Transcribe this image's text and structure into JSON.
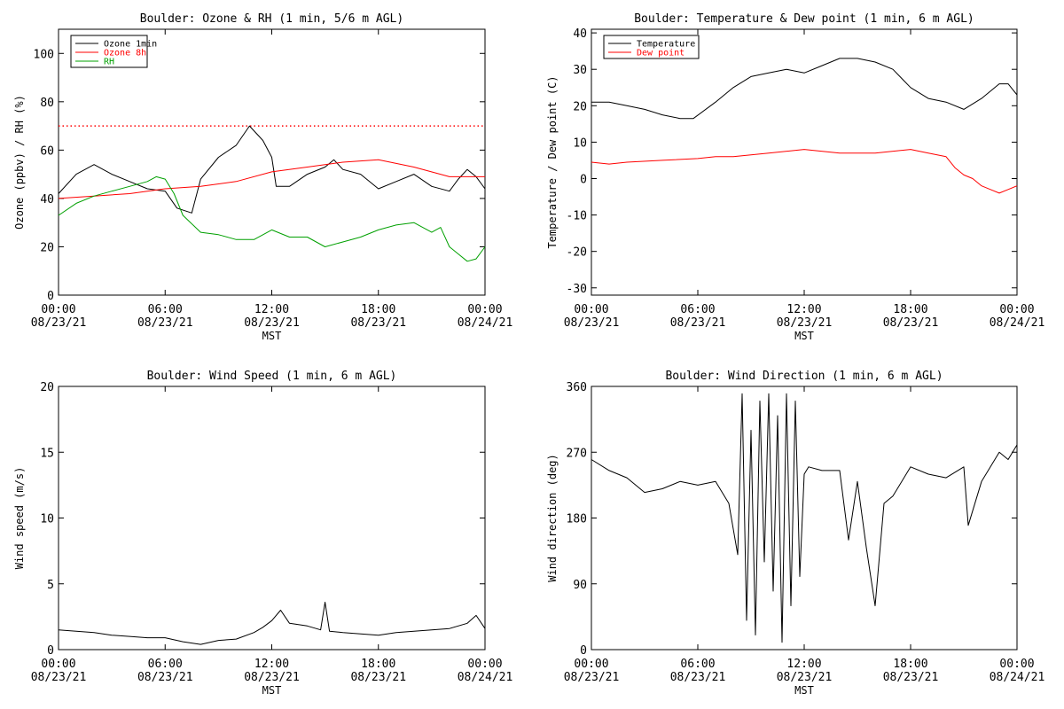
{
  "figure": {
    "background": "#ffffff"
  },
  "chart_data": [
    {
      "type": "line",
      "title": "Boulder: Ozone & RH (1 min, 5/6 m AGL)",
      "xlabel": "MST",
      "ylabel": "Ozone (ppbv) / RH (%)",
      "xlim": [
        "08/23/21 00:00",
        "08/24/21 00:00"
      ],
      "xticks": [
        {
          "time": "00:00",
          "date": "08/23/21"
        },
        {
          "time": "06:00",
          "date": "08/23/21"
        },
        {
          "time": "12:00",
          "date": "08/23/21"
        },
        {
          "time": "18:00",
          "date": "08/23/21"
        },
        {
          "time": "00:00",
          "date": "08/24/21"
        }
      ],
      "ylim": [
        0,
        110
      ],
      "yticks": [
        "0",
        "20",
        "40",
        "60",
        "80",
        "100"
      ],
      "ytick_values": [
        0,
        20,
        40,
        60,
        80,
        100
      ],
      "legend_position": "top-left",
      "reference_line": {
        "y": 70,
        "color": "#ff0000",
        "style": "dotted"
      },
      "series": [
        {
          "name": "Ozone 1min",
          "color": "#000000",
          "x": [
            "00:00",
            "01:00",
            "02:00",
            "03:00",
            "04:00",
            "05:00",
            "06:00",
            "06:40",
            "07:30",
            "08:00",
            "09:00",
            "10:00",
            "10:45",
            "11:30",
            "12:00",
            "12:15",
            "13:00",
            "14:00",
            "15:00",
            "15:30",
            "16:00",
            "17:00",
            "18:00",
            "19:00",
            "20:00",
            "21:00",
            "22:00",
            "22:30",
            "23:00",
            "23:30",
            "24:00"
          ],
          "y": [
            42,
            50,
            54,
            50,
            47,
            44,
            43,
            36,
            34,
            48,
            57,
            62,
            70,
            64,
            57,
            45,
            45,
            50,
            53,
            56,
            52,
            50,
            44,
            47,
            50,
            45,
            43,
            48,
            52,
            49,
            44
          ]
        },
        {
          "name": "Ozone 8h",
          "color": "#ff0000",
          "x": [
            "00:00",
            "02:00",
            "04:00",
            "06:00",
            "08:00",
            "10:00",
            "12:00",
            "14:00",
            "16:00",
            "18:00",
            "20:00",
            "22:00",
            "24:00"
          ],
          "y": [
            40,
            41,
            42,
            44,
            45,
            47,
            51,
            53,
            55,
            56,
            53,
            49,
            49
          ]
        },
        {
          "name": "RH",
          "color": "#00a000",
          "x": [
            "00:00",
            "01:00",
            "02:00",
            "03:00",
            "04:00",
            "05:00",
            "05:30",
            "06:00",
            "06:30",
            "07:00",
            "08:00",
            "09:00",
            "10:00",
            "11:00",
            "12:00",
            "13:00",
            "14:00",
            "15:00",
            "16:00",
            "17:00",
            "18:00",
            "19:00",
            "20:00",
            "21:00",
            "21:30",
            "22:00",
            "22:30",
            "23:00",
            "23:30",
            "24:00"
          ],
          "y": [
            33,
            38,
            41,
            43,
            45,
            47,
            49,
            48,
            42,
            33,
            26,
            25,
            23,
            23,
            27,
            24,
            24,
            20,
            22,
            24,
            27,
            29,
            30,
            26,
            28,
            20,
            17,
            14,
            15,
            20
          ]
        }
      ]
    },
    {
      "type": "line",
      "title": "Boulder: Temperature & Dew point (1 min, 6 m AGL)",
      "xlabel": "MST",
      "ylabel": "Temperature / Dew point (C)",
      "xlim": [
        "08/23/21 00:00",
        "08/24/21 00:00"
      ],
      "xticks": [
        {
          "time": "00:00",
          "date": "08/23/21"
        },
        {
          "time": "06:00",
          "date": "08/23/21"
        },
        {
          "time": "12:00",
          "date": "08/23/21"
        },
        {
          "time": "18:00",
          "date": "08/23/21"
        },
        {
          "time": "00:00",
          "date": "08/24/21"
        }
      ],
      "ylim": [
        -32,
        41
      ],
      "yticks": [
        "-30",
        "-20",
        "-10",
        "0",
        "10",
        "20",
        "30",
        "40"
      ],
      "ytick_values": [
        -30,
        -20,
        -10,
        0,
        10,
        20,
        30,
        40
      ],
      "legend_position": "top-left",
      "series": [
        {
          "name": "Temperature",
          "color": "#000000",
          "x": [
            "00:00",
            "01:00",
            "02:00",
            "03:00",
            "04:00",
            "05:00",
            "05:45",
            "07:00",
            "08:00",
            "09:00",
            "10:00",
            "11:00",
            "12:00",
            "13:00",
            "14:00",
            "15:00",
            "16:00",
            "17:00",
            "18:00",
            "19:00",
            "20:00",
            "21:00",
            "22:00",
            "22:30",
            "23:00",
            "23:30",
            "24:00"
          ],
          "y": [
            21,
            21,
            20,
            19,
            17.5,
            16.5,
            16.5,
            21,
            25,
            28,
            29,
            30,
            29,
            31,
            33,
            33,
            32,
            30,
            25,
            22,
            21,
            19,
            22,
            24,
            26,
            26,
            23
          ]
        },
        {
          "name": "Dew point",
          "color": "#ff0000",
          "x": [
            "00:00",
            "01:00",
            "02:00",
            "04:00",
            "06:00",
            "07:00",
            "08:00",
            "10:00",
            "12:00",
            "14:00",
            "16:00",
            "18:00",
            "19:00",
            "20:00",
            "20:30",
            "21:00",
            "21:30",
            "22:00",
            "22:30",
            "23:00",
            "23:30",
            "24:00"
          ],
          "y": [
            4.5,
            4,
            4.5,
            5,
            5.5,
            6,
            6,
            7,
            8,
            7,
            7,
            8,
            7,
            6,
            3,
            1,
            0,
            -2,
            -3,
            -4,
            -3,
            -2
          ]
        }
      ]
    },
    {
      "type": "line",
      "title": "Boulder: Wind Speed (1 min, 6 m AGL)",
      "xlabel": "MST",
      "ylabel": "Wind speed (m/s)",
      "xlim": [
        "08/23/21 00:00",
        "08/24/21 00:00"
      ],
      "xticks": [
        {
          "time": "00:00",
          "date": "08/23/21"
        },
        {
          "time": "06:00",
          "date": "08/23/21"
        },
        {
          "time": "12:00",
          "date": "08/23/21"
        },
        {
          "time": "18:00",
          "date": "08/23/21"
        },
        {
          "time": "00:00",
          "date": "08/24/21"
        }
      ],
      "ylim": [
        0,
        20
      ],
      "yticks": [
        "0",
        "5",
        "10",
        "15",
        "20"
      ],
      "ytick_values": [
        0,
        5,
        10,
        15,
        20
      ],
      "series": [
        {
          "color": "#000000",
          "x": [
            "00:00",
            "01:00",
            "02:00",
            "03:00",
            "04:00",
            "05:00",
            "06:00",
            "07:00",
            "08:00",
            "09:00",
            "10:00",
            "11:00",
            "11:30",
            "12:00",
            "12:30",
            "13:00",
            "14:00",
            "14:45",
            "15:00",
            "15:15",
            "16:00",
            "17:00",
            "18:00",
            "19:00",
            "20:00",
            "21:00",
            "22:00",
            "23:00",
            "23:30",
            "24:00"
          ],
          "y": [
            1.5,
            1.4,
            1.3,
            1.1,
            1.0,
            0.9,
            0.9,
            0.6,
            0.4,
            0.7,
            0.8,
            1.3,
            1.7,
            2.2,
            3.0,
            2.0,
            1.8,
            1.5,
            3.6,
            1.4,
            1.3,
            1.2,
            1.1,
            1.3,
            1.4,
            1.5,
            1.6,
            2.0,
            2.6,
            1.6
          ]
        }
      ]
    },
    {
      "type": "line",
      "title": "Boulder: Wind Direction (1 min, 6 m AGL)",
      "xlabel": "MST",
      "ylabel": "Wind direction (deg)",
      "xlim": [
        "08/23/21 00:00",
        "08/24/21 00:00"
      ],
      "xticks": [
        {
          "time": "00:00",
          "date": "08/23/21"
        },
        {
          "time": "06:00",
          "date": "08/23/21"
        },
        {
          "time": "12:00",
          "date": "08/23/21"
        },
        {
          "time": "18:00",
          "date": "08/23/21"
        },
        {
          "time": "00:00",
          "date": "08/24/21"
        }
      ],
      "ylim": [
        0,
        360
      ],
      "yticks": [
        "0",
        "90",
        "180",
        "270",
        "360"
      ],
      "ytick_values": [
        0,
        90,
        180,
        270,
        360
      ],
      "series": [
        {
          "color": "#000000",
          "x": [
            "00:00",
            "01:00",
            "02:00",
            "03:00",
            "04:00",
            "05:00",
            "06:00",
            "07:00",
            "07:45",
            "08:15",
            "08:30",
            "08:45",
            "09:00",
            "09:15",
            "09:30",
            "09:45",
            "10:00",
            "10:15",
            "10:30",
            "10:45",
            "11:00",
            "11:15",
            "11:30",
            "11:45",
            "12:00",
            "12:15",
            "13:00",
            "14:00",
            "14:30",
            "15:00",
            "15:30",
            "16:00",
            "16:30",
            "17:00",
            "18:00",
            "19:00",
            "20:00",
            "21:00",
            "21:15",
            "21:30",
            "22:00",
            "22:30",
            "23:00",
            "23:30",
            "24:00"
          ],
          "y": [
            260,
            245,
            235,
            215,
            220,
            230,
            225,
            230,
            200,
            130,
            350,
            40,
            300,
            20,
            340,
            120,
            350,
            80,
            320,
            10,
            350,
            60,
            340,
            100,
            240,
            250,
            245,
            245,
            150,
            230,
            140,
            60,
            200,
            210,
            250,
            240,
            235,
            250,
            170,
            190,
            230,
            250,
            270,
            260,
            280
          ]
        }
      ]
    }
  ]
}
